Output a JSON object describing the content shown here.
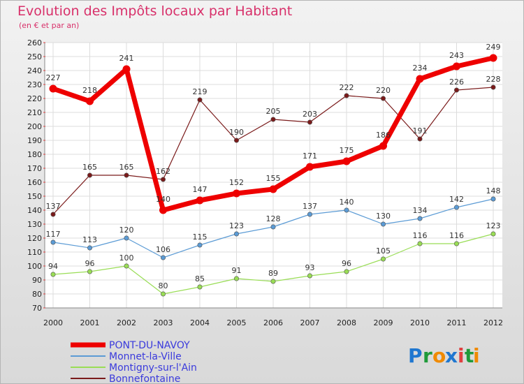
{
  "chart_data": {
    "type": "line",
    "title": "Evolution des Impôts locaux par Habitant",
    "subtitle": "(en € et par an)",
    "xlabel": "",
    "ylabel": "",
    "x": [
      "2000",
      "2001",
      "2002",
      "2003",
      "2004",
      "2005",
      "2006",
      "2007",
      "2008",
      "2009",
      "2010",
      "2011",
      "2012"
    ],
    "ylim": [
      70,
      260
    ],
    "yticks": [
      70,
      80,
      90,
      100,
      110,
      120,
      130,
      140,
      150,
      160,
      170,
      180,
      190,
      200,
      210,
      220,
      230,
      240,
      250,
      260
    ],
    "grid": true,
    "legend_position": "bottom-left",
    "series": [
      {
        "name": "PONT-DU-NAVOY",
        "color": "#ee0000",
        "values": [
          227,
          218,
          241,
          140,
          147,
          152,
          155,
          171,
          175,
          186,
          234,
          243,
          249
        ]
      },
      {
        "name": "Monnet-la-Ville",
        "color": "#5b9bd5",
        "values": [
          117,
          113,
          120,
          106,
          115,
          123,
          128,
          137,
          140,
          130,
          134,
          142,
          148
        ]
      },
      {
        "name": "Montigny-sur-l'Ain",
        "color": "#99dd55",
        "values": [
          94,
          96,
          100,
          80,
          85,
          91,
          89,
          93,
          96,
          105,
          116,
          116,
          123
        ]
      },
      {
        "name": "Bonnefontaine",
        "color": "#7a1a1a",
        "values": [
          137,
          165,
          165,
          162,
          219,
          190,
          205,
          203,
          222,
          220,
          191,
          226,
          228
        ]
      }
    ]
  },
  "brand": {
    "letters": [
      "P",
      "r",
      "o",
      "x",
      "i",
      "t",
      "i"
    ],
    "colors": [
      "#1f77d0",
      "#1f9a3a",
      "#f08a00",
      "#1f77d0",
      "#e04040",
      "#1f9a3a",
      "#f08a00"
    ]
  }
}
